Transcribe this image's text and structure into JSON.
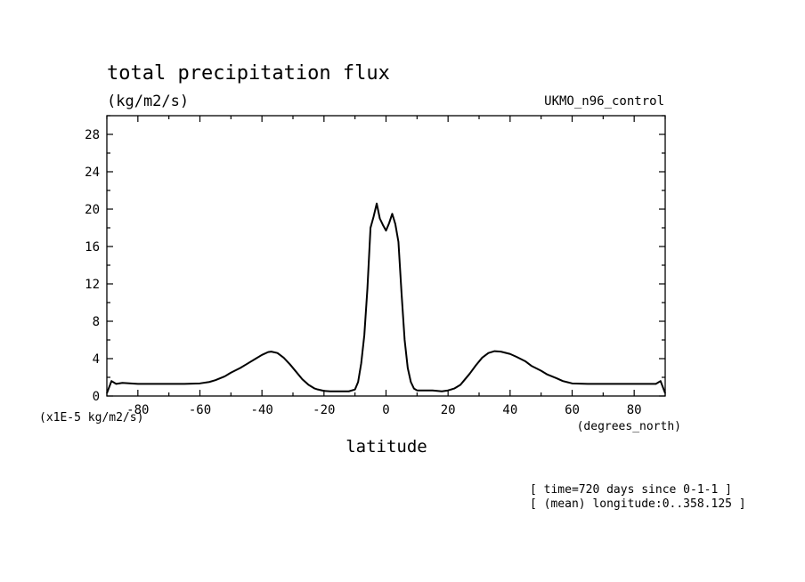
{
  "chart_data": {
    "type": "line",
    "title": "total precipitation flux",
    "units": "(kg/m2/s)",
    "dataset": "UKMO_n96_control",
    "xlabel": "latitude",
    "x_units": "(degrees_north)",
    "y_scale_label": "(x1E-5 kg/m2/s)",
    "xlim": [
      -90,
      90
    ],
    "ylim": [
      0,
      30
    ],
    "x_ticks": [
      -80,
      -60,
      -40,
      -20,
      0,
      20,
      40,
      60,
      80
    ],
    "y_ticks": [
      0,
      4,
      8,
      12,
      16,
      20,
      24,
      28
    ],
    "x_tick_labels": [
      "-80",
      "-60",
      "-40",
      "-20",
      "0",
      "20",
      "40",
      "60",
      "80"
    ],
    "y_tick_labels": [
      "0",
      "4",
      "8",
      "12",
      "16",
      "20",
      "24",
      "28"
    ],
    "grid": false,
    "series": [
      {
        "x": [
          -90,
          -88.5,
          -87,
          -85,
          -80,
          -75,
          -70,
          -65,
          -60,
          -57,
          -55,
          -52,
          -50,
          -47,
          -45,
          -42,
          -40,
          -38,
          -37,
          -35,
          -33,
          -31,
          -29,
          -27,
          -25,
          -23,
          -22,
          -20,
          -18,
          -15,
          -12,
          -10,
          -9,
          -8,
          -7,
          -6,
          -5,
          -4,
          -3,
          -2,
          -1,
          0,
          1,
          2,
          3,
          4,
          5,
          6,
          7,
          8,
          9,
          10,
          12,
          15,
          18,
          20,
          22,
          24,
          25,
          27,
          29,
          31,
          33,
          35,
          37,
          40,
          42,
          45,
          47,
          50,
          52,
          55,
          57,
          60,
          65,
          70,
          75,
          80,
          85,
          87,
          88.5,
          90
        ],
        "y": [
          0.3,
          1.6,
          1.3,
          1.4,
          1.3,
          1.3,
          1.3,
          1.3,
          1.35,
          1.5,
          1.7,
          2.1,
          2.5,
          3.0,
          3.4,
          4.0,
          4.4,
          4.7,
          4.75,
          4.6,
          4.1,
          3.4,
          2.6,
          1.8,
          1.2,
          0.8,
          0.7,
          0.55,
          0.5,
          0.5,
          0.5,
          0.7,
          1.5,
          3.5,
          6.5,
          11.5,
          18.0,
          19.2,
          20.6,
          19.0,
          18.3,
          17.7,
          18.5,
          19.5,
          18.4,
          16.5,
          11.0,
          6.0,
          3.0,
          1.5,
          0.8,
          0.6,
          0.6,
          0.6,
          0.5,
          0.6,
          0.8,
          1.2,
          1.6,
          2.4,
          3.3,
          4.1,
          4.6,
          4.8,
          4.75,
          4.5,
          4.2,
          3.7,
          3.2,
          2.7,
          2.3,
          1.9,
          1.6,
          1.35,
          1.3,
          1.3,
          1.3,
          1.3,
          1.3,
          1.3,
          1.6,
          0.3
        ]
      }
    ]
  },
  "annotations": {
    "time": "[ time=720 days since 0-1-1 ]",
    "longitude": "[ (mean) longitude:0..358.125 ]"
  }
}
